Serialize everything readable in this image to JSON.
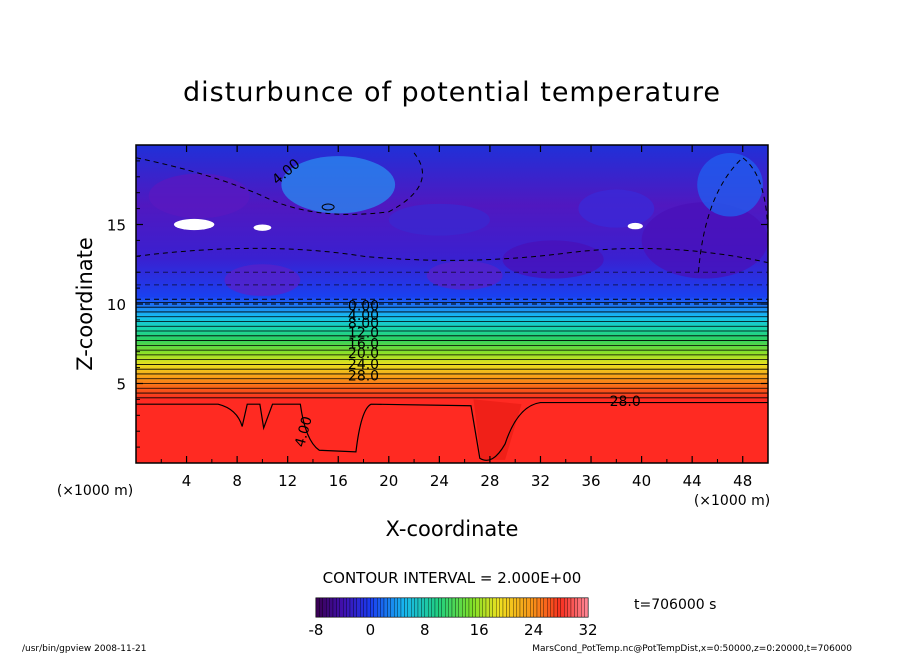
{
  "chart_data": {
    "type": "heatmap",
    "title": "disturbunce of potential temperature",
    "xlabel": "X-coordinate",
    "ylabel": "Z-coordinate",
    "x_unit": "(×1000 m)",
    "y_unit": "(×1000 m)",
    "xlim": [
      0,
      50
    ],
    "ylim": [
      0,
      20
    ],
    "x_ticks": [
      4,
      8,
      12,
      16,
      20,
      24,
      28,
      32,
      36,
      40,
      44,
      48
    ],
    "y_ticks": [
      5,
      10,
      15
    ],
    "contour_interval_text": "CONTOUR INTERVAL = 2.000E+00",
    "contour_levels_labeled": [
      "4.00",
      "0.00",
      "4.00",
      "8.00",
      "12.0",
      "16.0",
      "20.0",
      "24.0",
      "28.0",
      "28.0",
      "4.00"
    ],
    "layers": [
      {
        "z_bottom": 0,
        "z_top": 4,
        "value": 29
      },
      {
        "z_bottom": 4,
        "z_top": 5.2,
        "value": 24
      },
      {
        "z_bottom": 5.2,
        "z_top": 6.4,
        "value": 18
      },
      {
        "z_bottom": 6.4,
        "z_top": 7.8,
        "value": 13
      },
      {
        "z_bottom": 7.8,
        "z_top": 9.0,
        "value": 6
      },
      {
        "z_bottom": 9.0,
        "z_top": 10.5,
        "value": 1
      },
      {
        "z_bottom": 10.5,
        "z_top": 20,
        "value": -5
      }
    ],
    "colorbar": {
      "min": -8,
      "max": 32,
      "tick_labels": [
        "-8",
        "0",
        "8",
        "16",
        "24",
        "32"
      ],
      "tick_values": [
        -8,
        0,
        8,
        16,
        24,
        32
      ]
    },
    "time_label": "t=706000 s",
    "footer_left": "/usr/bin/gpview  2008-11-21",
    "footer_right": "MarsCond_PotTemp.nc@PotTempDist,x=0:50000,z=0:20000,t=706000",
    "colors": {
      "warm": "#ff2a22",
      "cold": "#6a10c8",
      "mid": "#2ad468"
    }
  }
}
